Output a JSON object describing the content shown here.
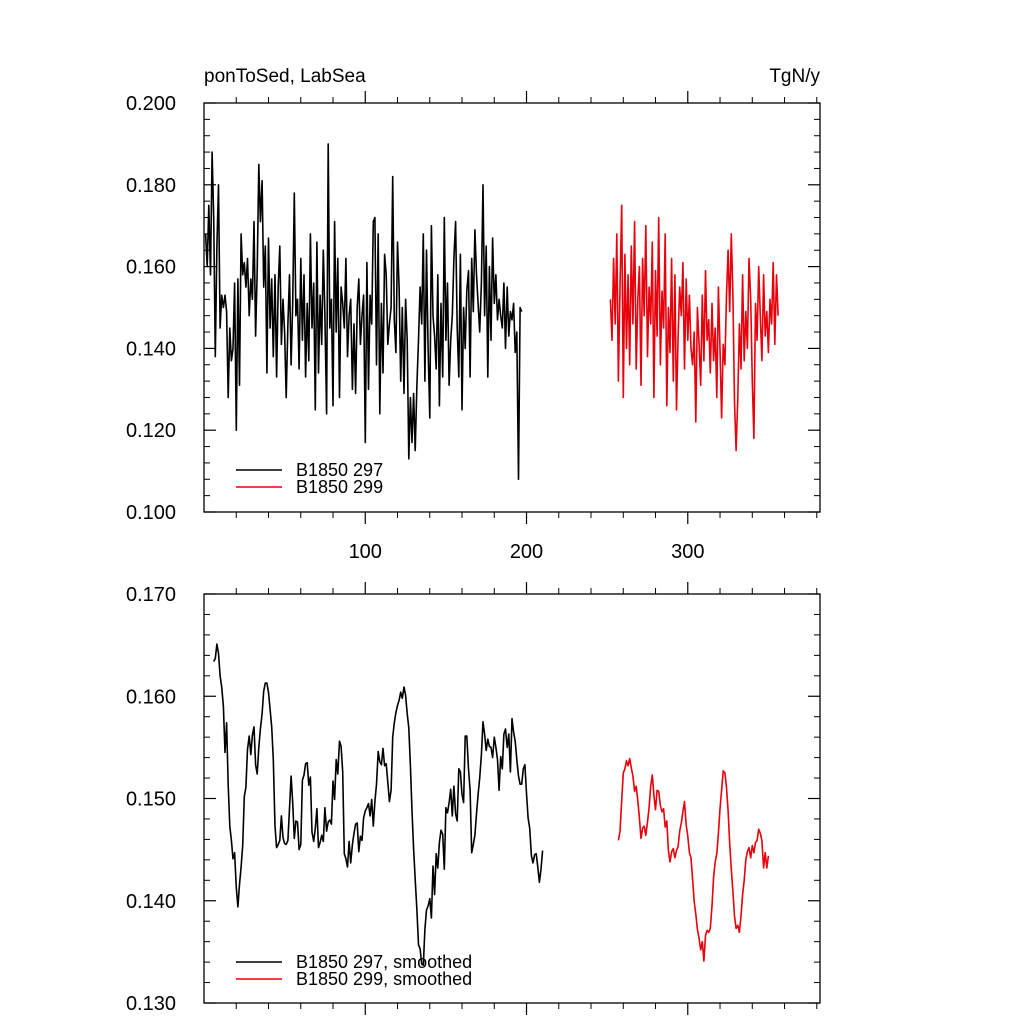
{
  "chart_data": [
    {
      "type": "line",
      "title_left": "ponToSed, LabSea",
      "title_right": "TgN/y",
      "xlim": [
        0,
        382
      ],
      "ylim": [
        0.1,
        0.2
      ],
      "xticks": [
        100,
        200,
        300
      ],
      "xtick_labels": [
        "100",
        "200",
        "300"
      ],
      "yticks": [
        0.1,
        0.12,
        0.14,
        0.16,
        0.18,
        0.2
      ],
      "ytick_labels": [
        "0.100",
        "0.120",
        "0.140",
        "0.160",
        "0.180",
        "0.200"
      ],
      "grid": false,
      "legend_position": "bottom-left",
      "series": [
        {
          "name": "B1850 297",
          "color": "#000000",
          "x_start": 1,
          "values": [
            0.168,
            0.16,
            0.175,
            0.158,
            0.188,
            0.172,
            0.138,
            0.165,
            0.18,
            0.145,
            0.153,
            0.15,
            0.153,
            0.149,
            0.128,
            0.145,
            0.137,
            0.14,
            0.156,
            0.12,
            0.157,
            0.131,
            0.168,
            0.158,
            0.161,
            0.155,
            0.162,
            0.148,
            0.157,
            0.152,
            0.171,
            0.143,
            0.159,
            0.185,
            0.171,
            0.181,
            0.155,
            0.165,
            0.134,
            0.167,
            0.145,
            0.157,
            0.138,
            0.158,
            0.133,
            0.155,
            0.165,
            0.141,
            0.152,
            0.144,
            0.128,
            0.146,
            0.158,
            0.136,
            0.151,
            0.178,
            0.148,
            0.152,
            0.135,
            0.162,
            0.142,
            0.158,
            0.133,
            0.151,
            0.137,
            0.168,
            0.145,
            0.156,
            0.125,
            0.166,
            0.134,
            0.153,
            0.141,
            0.164,
            0.148,
            0.124,
            0.19,
            0.145,
            0.152,
            0.126,
            0.171,
            0.144,
            0.162,
            0.128,
            0.155,
            0.151,
            0.145,
            0.162,
            0.138,
            0.148,
            0.152,
            0.13,
            0.146,
            0.129,
            0.15,
            0.157,
            0.141,
            0.148,
            0.153,
            0.117,
            0.161,
            0.13,
            0.153,
            0.146,
            0.171,
            0.172,
            0.136,
            0.168,
            0.124,
            0.151,
            0.134,
            0.163,
            0.158,
            0.141,
            0.146,
            0.15,
            0.182,
            0.147,
            0.139,
            0.166,
            0.155,
            0.132,
            0.15,
            0.129,
            0.152,
            0.142,
            0.113,
            0.128,
            0.117,
            0.129,
            0.115,
            0.131,
            0.142,
            0.155,
            0.146,
            0.168,
            0.132,
            0.164,
            0.14,
            0.123,
            0.17,
            0.148,
            0.143,
            0.135,
            0.158,
            0.126,
            0.151,
            0.133,
            0.172,
            0.142,
            0.156,
            0.131,
            0.142,
            0.148,
            0.162,
            0.171,
            0.145,
            0.133,
            0.163,
            0.125,
            0.15,
            0.14,
            0.154,
            0.159,
            0.133,
            0.162,
            0.149,
            0.169,
            0.158,
            0.151,
            0.144,
            0.156,
            0.18,
            0.148,
            0.165,
            0.133,
            0.16,
            0.142,
            0.167,
            0.151,
            0.158,
            0.147,
            0.152,
            0.148,
            0.145,
            0.156,
            0.14,
            0.155,
            0.143,
            0.149,
            0.147,
            0.151,
            0.139,
            0.144,
            0.108,
            0.15,
            0.149
          ]
        },
        {
          "name": "B1850 299",
          "color": "#e8000b",
          "x_start": 252,
          "values": [
            0.152,
            0.142,
            0.162,
            0.146,
            0.168,
            0.132,
            0.155,
            0.175,
            0.128,
            0.163,
            0.14,
            0.158,
            0.136,
            0.165,
            0.146,
            0.171,
            0.135,
            0.152,
            0.16,
            0.131,
            0.162,
            0.148,
            0.17,
            0.138,
            0.155,
            0.146,
            0.166,
            0.128,
            0.159,
            0.143,
            0.172,
            0.136,
            0.154,
            0.145,
            0.168,
            0.126,
            0.15,
            0.139,
            0.162,
            0.132,
            0.158,
            0.125,
            0.143,
            0.155,
            0.148,
            0.161,
            0.135,
            0.157,
            0.142,
            0.153,
            0.14,
            0.136,
            0.144,
            0.122,
            0.15,
            0.141,
            0.131,
            0.153,
            0.137,
            0.159,
            0.142,
            0.147,
            0.134,
            0.151,
            0.137,
            0.145,
            0.128,
            0.155,
            0.14,
            0.123,
            0.141,
            0.136,
            0.153,
            0.164,
            0.149,
            0.168,
            0.153,
            0.127,
            0.115,
            0.128,
            0.146,
            0.135,
            0.158,
            0.137,
            0.149,
            0.14,
            0.162,
            0.152,
            0.132,
            0.118,
            0.151,
            0.142,
            0.16,
            0.148,
            0.137,
            0.158,
            0.143,
            0.149,
            0.139,
            0.152,
            0.146,
            0.161,
            0.141,
            0.158,
            0.148
          ]
        }
      ]
    },
    {
      "type": "line",
      "xlim": [
        0,
        382
      ],
      "ylim": [
        0.13,
        0.17
      ],
      "xticks": [
        100,
        200,
        300
      ],
      "yticks": [
        0.13,
        0.14,
        0.15,
        0.16,
        0.17
      ],
      "ytick_labels": [
        "0.130",
        "0.140",
        "0.150",
        "0.160",
        "0.170"
      ],
      "grid": false,
      "legend_position": "bottom-left",
      "series": [
        {
          "name": "B1850 297, smoothed",
          "color": "#000000",
          "x_start": 6,
          "values": [
            0.1634,
            0.1637,
            0.1651,
            0.1642,
            0.162,
            0.1609,
            0.159,
            0.1545,
            0.1574,
            0.1513,
            0.1473,
            0.1459,
            0.1441,
            0.1447,
            0.1413,
            0.1394,
            0.1416,
            0.1433,
            0.1454,
            0.1502,
            0.1511,
            0.1548,
            0.1561,
            0.1543,
            0.1562,
            0.157,
            0.1533,
            0.1524,
            0.155,
            0.1568,
            0.1583,
            0.1605,
            0.1613,
            0.1613,
            0.1604,
            0.1587,
            0.157,
            0.1538,
            0.1473,
            0.1452,
            0.1455,
            0.1459,
            0.1483,
            0.1462,
            0.1456,
            0.1455,
            0.1459,
            0.149,
            0.1522,
            0.1496,
            0.1461,
            0.1478,
            0.1477,
            0.145,
            0.1455,
            0.1518,
            0.1523,
            0.1534,
            0.1535,
            0.1513,
            0.1521,
            0.1467,
            0.1458,
            0.1471,
            0.149,
            0.1452,
            0.1457,
            0.1464,
            0.1458,
            0.1491,
            0.1468,
            0.1477,
            0.1479,
            0.1475,
            0.1517,
            0.1499,
            0.1538,
            0.1524,
            0.1556,
            0.1551,
            0.1526,
            0.1446,
            0.1441,
            0.1433,
            0.1458,
            0.1437,
            0.1455,
            0.1466,
            0.1475,
            0.1476,
            0.1448,
            0.1463,
            0.1459,
            0.1481,
            0.1488,
            0.1491,
            0.1495,
            0.1483,
            0.1499,
            0.1473,
            0.1497,
            0.1514,
            0.1546,
            0.1536,
            0.1533,
            0.1549,
            0.1532,
            0.1534,
            0.1516,
            0.1497,
            0.1508,
            0.156,
            0.1574,
            0.1584,
            0.1591,
            0.1596,
            0.1604,
            0.1598,
            0.1609,
            0.1601,
            0.1583,
            0.1569,
            0.1532,
            0.1488,
            0.1451,
            0.1421,
            0.1391,
            0.1357,
            0.1353,
            0.1338,
            0.1337,
            0.1372,
            0.1391,
            0.1395,
            0.1402,
            0.1383,
            0.1434,
            0.1406,
            0.1446,
            0.1432,
            0.1457,
            0.1469,
            0.1465,
            0.1431,
            0.1491,
            0.1486,
            0.1496,
            0.1509,
            0.1483,
            0.1512,
            0.1485,
            0.1478,
            0.1529,
            0.1526,
            0.1504,
            0.1496,
            0.1561,
            0.1561,
            0.1529,
            0.1508,
            0.1447,
            0.1455,
            0.1464,
            0.1485,
            0.1504,
            0.152,
            0.1543,
            0.1575,
            0.1563,
            0.1547,
            0.1558,
            0.1551,
            0.155,
            0.154,
            0.156,
            0.155,
            0.1538,
            0.1508,
            0.1541,
            0.1529,
            0.1563,
            0.1568,
            0.155,
            0.1563,
            0.1526,
            0.1578,
            0.1565,
            0.1556,
            0.1538,
            0.1522,
            0.1514,
            0.1514,
            0.1529,
            0.1533,
            0.1505,
            0.1481,
            0.1471,
            0.1444,
            0.1437,
            0.1445,
            0.1446,
            0.1433,
            0.1418,
            0.1431,
            0.1449
          ]
        },
        {
          "name": "B1850 299, smoothed",
          "color": "#e8000b",
          "x_start": 257,
          "values": [
            0.1459,
            0.1468,
            0.1498,
            0.1525,
            0.1529,
            0.1537,
            0.1532,
            0.1539,
            0.153,
            0.1522,
            0.1507,
            0.1512,
            0.1498,
            0.1481,
            0.1461,
            0.1471,
            0.1473,
            0.1464,
            0.1477,
            0.1491,
            0.1512,
            0.1523,
            0.1503,
            0.1489,
            0.1508,
            0.1507,
            0.1493,
            0.1487,
            0.149,
            0.1472,
            0.1478,
            0.1449,
            0.1438,
            0.1448,
            0.1451,
            0.1442,
            0.1449,
            0.1453,
            0.1468,
            0.1476,
            0.1487,
            0.1497,
            0.1474,
            0.1463,
            0.1447,
            0.1442,
            0.1421,
            0.1399,
            0.1387,
            0.1372,
            0.1363,
            0.1352,
            0.136,
            0.1341,
            0.1366,
            0.1371,
            0.1369,
            0.1373,
            0.1395,
            0.1423,
            0.1438,
            0.1446,
            0.1466,
            0.149,
            0.1508,
            0.1527,
            0.1525,
            0.1511,
            0.1488,
            0.1456,
            0.1431,
            0.1409,
            0.1385,
            0.1373,
            0.1376,
            0.1369,
            0.1385,
            0.1406,
            0.142,
            0.144,
            0.1448,
            0.1452,
            0.1442,
            0.1454,
            0.1447,
            0.1457,
            0.1459,
            0.147,
            0.1466,
            0.1459,
            0.1432,
            0.1447,
            0.1432,
            0.1444
          ]
        }
      ]
    }
  ]
}
